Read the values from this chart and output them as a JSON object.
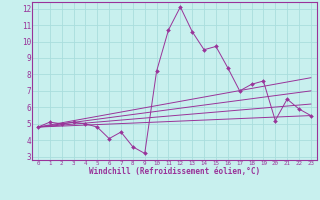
{
  "xlabel": "Windchill (Refroidissement éolien,°C)",
  "bg_color": "#c8f0ee",
  "grid_color": "#aadddd",
  "line_color": "#993399",
  "spine_color": "#993399",
  "xlim": [
    -0.5,
    23.5
  ],
  "ylim": [
    2.8,
    12.4
  ],
  "xticks": [
    0,
    1,
    2,
    3,
    4,
    5,
    6,
    7,
    8,
    9,
    10,
    11,
    12,
    13,
    14,
    15,
    16,
    17,
    18,
    19,
    20,
    21,
    22,
    23
  ],
  "yticks": [
    3,
    4,
    5,
    6,
    7,
    8,
    9,
    10,
    11,
    12
  ],
  "jagged_x": [
    0,
    1,
    2,
    3,
    4,
    5,
    6,
    7,
    8,
    9,
    10,
    11,
    12,
    13,
    14,
    15,
    16,
    17,
    18,
    19,
    20,
    21,
    22,
    23
  ],
  "jagged_y": [
    4.8,
    5.1,
    5.0,
    5.1,
    5.0,
    4.8,
    4.1,
    4.5,
    3.6,
    3.2,
    8.2,
    10.7,
    12.1,
    10.6,
    9.5,
    9.7,
    8.4,
    7.0,
    7.4,
    7.6,
    5.2,
    6.5,
    5.9,
    5.5
  ],
  "trend_lines": [
    {
      "x": [
        0,
        23
      ],
      "y": [
        4.8,
        5.5
      ]
    },
    {
      "x": [
        0,
        23
      ],
      "y": [
        4.8,
        6.2
      ]
    },
    {
      "x": [
        0,
        23
      ],
      "y": [
        4.8,
        7.0
      ]
    },
    {
      "x": [
        0,
        23
      ],
      "y": [
        4.8,
        7.8
      ]
    }
  ]
}
